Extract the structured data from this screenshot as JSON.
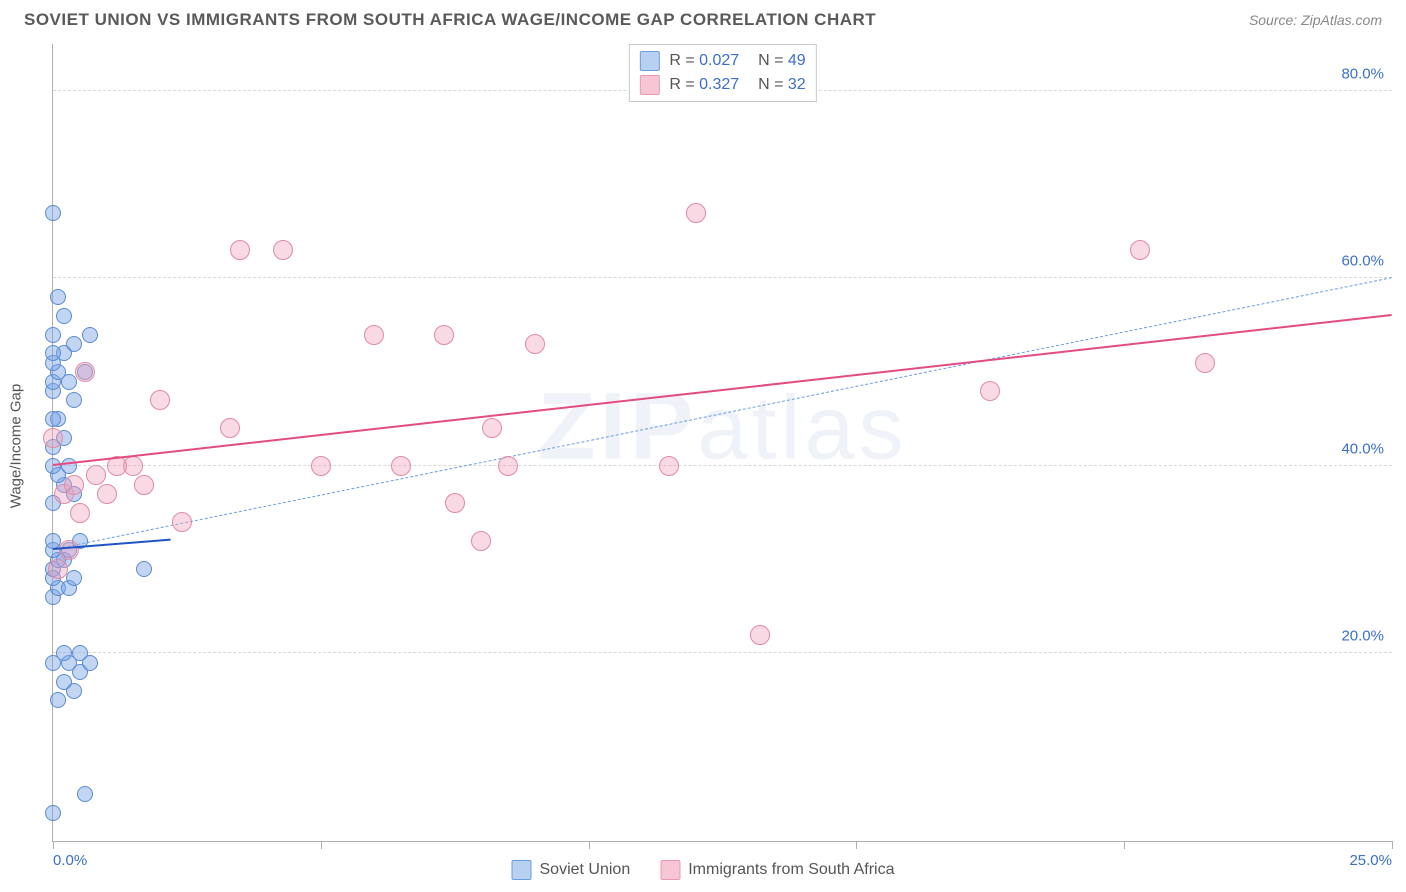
{
  "header": {
    "title": "SOVIET UNION VS IMMIGRANTS FROM SOUTH AFRICA WAGE/INCOME GAP CORRELATION CHART",
    "source_label": "Source:",
    "source_value": "ZipAtlas.com"
  },
  "watermark": {
    "part1": "ZIP",
    "part2": "atlas"
  },
  "chart": {
    "type": "scatter",
    "ylabel": "Wage/Income Gap",
    "xlim": [
      0,
      25
    ],
    "ylim": [
      0,
      85
    ],
    "x_ticks": [
      0,
      5,
      10,
      15,
      20,
      25
    ],
    "x_tick_labels": [
      "0.0%",
      "",
      "",
      "",
      "",
      "25.0%"
    ],
    "y_gridlines": [
      20,
      40,
      60,
      80
    ],
    "y_tick_labels": [
      "20.0%",
      "40.0%",
      "60.0%",
      "80.0%"
    ],
    "background_color": "#ffffff",
    "grid_color": "#d8d8d8",
    "axis_color": "#b0b0b0",
    "tick_label_color": "#3b6fc9",
    "series": [
      {
        "name": "Soviet Union",
        "color_fill": "rgba(120,165,230,0.45)",
        "color_stroke": "#5a8ad0",
        "swatch_fill": "#b9d1f0",
        "swatch_stroke": "#6a9de0",
        "marker_radius": 8,
        "R": "0.027",
        "N": "49",
        "trend": {
          "x1": 0,
          "y1": 31,
          "x2": 2.2,
          "y2": 32,
          "color": "#1f55c4",
          "width": 2.5,
          "dash": false
        },
        "trend_ext": {
          "x1": 0,
          "y1": 31,
          "x2": 25,
          "y2": 60,
          "color": "#6a9de0",
          "width": 1.5,
          "dash": true
        },
        "points": [
          [
            0.0,
            3
          ],
          [
            0.6,
            5
          ],
          [
            0.1,
            15
          ],
          [
            0.4,
            16
          ],
          [
            0.2,
            17
          ],
          [
            0.5,
            18
          ],
          [
            0.3,
            19
          ],
          [
            0.7,
            19
          ],
          [
            0.0,
            19
          ],
          [
            0.2,
            20
          ],
          [
            0.5,
            20
          ],
          [
            0.0,
            26
          ],
          [
            0.1,
            27
          ],
          [
            0.3,
            27
          ],
          [
            0.4,
            28
          ],
          [
            0.0,
            28
          ],
          [
            1.7,
            29
          ],
          [
            0.0,
            29
          ],
          [
            0.2,
            30
          ],
          [
            0.1,
            30
          ],
          [
            0.0,
            31
          ],
          [
            0.3,
            31
          ],
          [
            0.0,
            32
          ],
          [
            0.5,
            32
          ],
          [
            0.0,
            36
          ],
          [
            0.4,
            37
          ],
          [
            0.2,
            38
          ],
          [
            0.1,
            39
          ],
          [
            0.0,
            40
          ],
          [
            0.3,
            40
          ],
          [
            0.0,
            42
          ],
          [
            0.2,
            43
          ],
          [
            0.1,
            45
          ],
          [
            0.4,
            47
          ],
          [
            0.0,
            48
          ],
          [
            0.3,
            49
          ],
          [
            0.0,
            49
          ],
          [
            0.6,
            50
          ],
          [
            0.1,
            50
          ],
          [
            0.0,
            51
          ],
          [
            0.2,
            52
          ],
          [
            0.0,
            52
          ],
          [
            0.4,
            53
          ],
          [
            0.0,
            54
          ],
          [
            0.7,
            54
          ],
          [
            0.0,
            67
          ],
          [
            0.2,
            56
          ],
          [
            0.1,
            58
          ],
          [
            0.0,
            45
          ]
        ]
      },
      {
        "name": "Immigrants from South Africa",
        "color_fill": "rgba(240,160,185,0.40)",
        "color_stroke": "#e08ba8",
        "swatch_fill": "#f6c6d5",
        "swatch_stroke": "#e89ab5",
        "marker_radius": 10,
        "R": "0.327",
        "N": "32",
        "trend": {
          "x1": 0,
          "y1": 40,
          "x2": 25,
          "y2": 56,
          "color": "#e34b82",
          "width": 2.5,
          "dash": false
        },
        "points": [
          [
            0.1,
            29
          ],
          [
            0.3,
            31
          ],
          [
            0.5,
            35
          ],
          [
            0.2,
            37
          ],
          [
            1.0,
            37
          ],
          [
            1.7,
            38
          ],
          [
            0.4,
            38
          ],
          [
            0.8,
            39
          ],
          [
            1.5,
            40
          ],
          [
            2.4,
            34
          ],
          [
            1.2,
            40
          ],
          [
            2.0,
            47
          ],
          [
            3.3,
            44
          ],
          [
            5.0,
            40
          ],
          [
            3.5,
            63
          ],
          [
            4.3,
            63
          ],
          [
            6.0,
            54
          ],
          [
            6.5,
            40
          ],
          [
            7.3,
            54
          ],
          [
            7.5,
            36
          ],
          [
            8.0,
            32
          ],
          [
            8.2,
            44
          ],
          [
            9.0,
            53
          ],
          [
            8.5,
            40
          ],
          [
            11.5,
            40
          ],
          [
            12.0,
            67
          ],
          [
            13.2,
            22
          ],
          [
            17.5,
            48
          ],
          [
            20.3,
            63
          ],
          [
            21.5,
            51
          ],
          [
            0.6,
            50
          ],
          [
            0.0,
            43
          ]
        ]
      }
    ]
  },
  "bottom_legend": {
    "items": [
      "Soviet Union",
      "Immigrants from South Africa"
    ]
  }
}
